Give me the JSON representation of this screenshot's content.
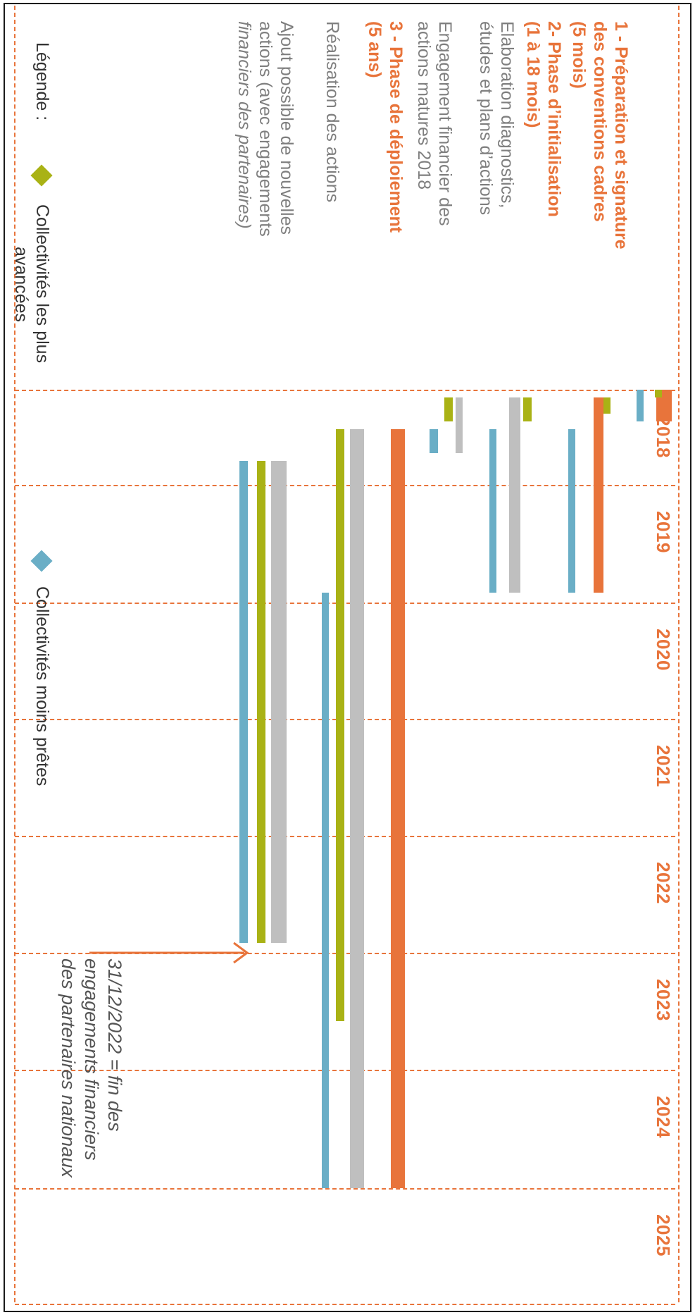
{
  "timeline": {
    "years": [
      "2018",
      "2019",
      "2020",
      "2021",
      "2022",
      "2023",
      "2024",
      "2025"
    ]
  },
  "labels": {
    "phase1_line1": "1 - Préparation et signature",
    "phase1_line2": "des conventions cadres",
    "phase1_line3": "(5 mois)",
    "phase2_line1": "2- Phase d’initialisation",
    "phase2_line2": "(1 à 18 mois)",
    "elab_line1": "Elaboration diagnostics,",
    "elab_line2": "études et plans d’actions",
    "engage_line1": "Engagement financier des",
    "engage_line2": "actions matures 2018",
    "phase3_line1": "3 - Phase de déploiement",
    "phase3_line2": "(5 ans)",
    "real_line1": "Réalisation des actions",
    "ajout_line1": "Ajout possible de nouvelles",
    "ajout_line2": "actions (avec engagements",
    "ajout_line3": "financiers des partenaires)"
  },
  "legend": {
    "title": "Légende :",
    "green_label_line1": "Collectivités les plus",
    "green_label_line2": "avancées",
    "blue_label": "Collectivités moins prêtes"
  },
  "note": {
    "line1": "31/12/2022 = fin des",
    "line2": "engagements financiers",
    "line3": "des partenaires nationaux"
  },
  "colors": {
    "orange": "#e8743b",
    "green": "#a9b215",
    "gray": "#bfbfbf",
    "blue": "#6aaec6",
    "text_gray": "#7f7f7f"
  },
  "gantt_bars": [
    {
      "row": "phase1",
      "color": "orange",
      "start": "2018-01",
      "end": "2018-05"
    },
    {
      "row": "phase1",
      "color": "green",
      "start": "2018-01",
      "end": "2018-02"
    },
    {
      "row": "phase1",
      "color": "blue",
      "start": "2018-01",
      "end": "2018-05"
    },
    {
      "row": "phase2",
      "color": "orange",
      "start": "2018-02",
      "end": "2019-12"
    },
    {
      "row": "phase2",
      "color": "green",
      "start": "2018-02",
      "end": "2018-04"
    },
    {
      "row": "phase2",
      "color": "blue",
      "start": "2018-06",
      "end": "2019-12"
    },
    {
      "row": "elaboration",
      "color": "gray",
      "start": "2018-02",
      "end": "2019-12"
    },
    {
      "row": "elaboration",
      "color": "green",
      "start": "2018-02",
      "end": "2018-05"
    },
    {
      "row": "elaboration",
      "color": "blue",
      "start": "2018-06",
      "end": "2019-12"
    },
    {
      "row": "engagement",
      "color": "gray",
      "start": "2018-02",
      "end": "2018-09"
    },
    {
      "row": "engagement",
      "color": "green",
      "start": "2018-02",
      "end": "2018-05"
    },
    {
      "row": "engagement",
      "color": "blue",
      "start": "2018-06",
      "end": "2018-09"
    },
    {
      "row": "phase3",
      "color": "orange",
      "start": "2018-06",
      "end": "2025-01"
    },
    {
      "row": "realisation",
      "color": "gray",
      "start": "2018-06",
      "end": "2025-01"
    },
    {
      "row": "realisation",
      "color": "green",
      "start": "2018-06",
      "end": "2023-08"
    },
    {
      "row": "realisation",
      "color": "blue",
      "start": "2019-12",
      "end": "2025-01"
    },
    {
      "row": "ajout",
      "color": "gray",
      "start": "2018-10",
      "end": "2022-12"
    },
    {
      "row": "ajout",
      "color": "green",
      "start": "2018-10",
      "end": "2022-12"
    },
    {
      "row": "ajout",
      "color": "blue",
      "start": "2018-10",
      "end": "2022-12"
    }
  ]
}
